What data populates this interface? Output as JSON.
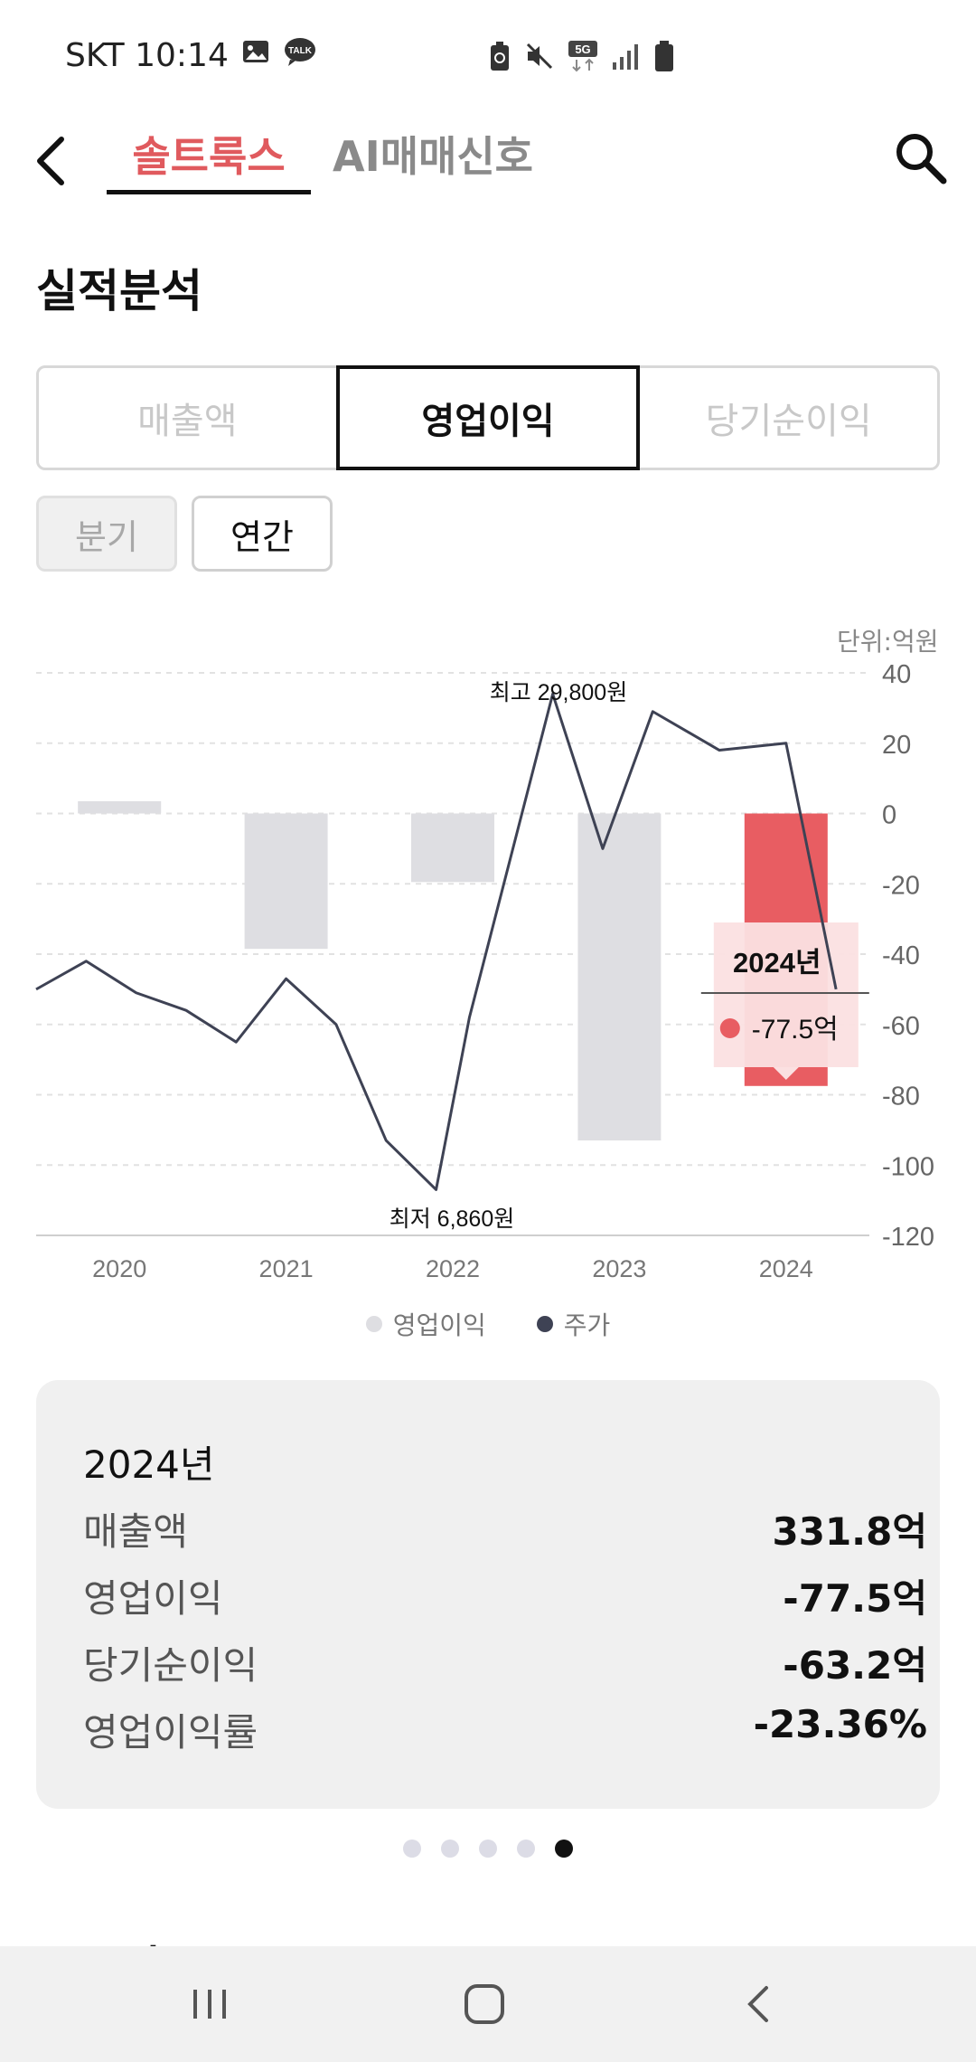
{
  "status_bar": {
    "carrier_time": "SKT 10:14",
    "network": "5G"
  },
  "header": {
    "tab_active": "솔트룩스",
    "tab_ai": "AI매매신호"
  },
  "section": {
    "title": "실적분석",
    "next_title": "주요지표"
  },
  "metric_tabs": [
    "매출액",
    "영업이익",
    "당기순이익"
  ],
  "period_tabs": [
    "분기",
    "연간"
  ],
  "chart": {
    "unit": "단위:억원",
    "high_label": "최고 29,800원",
    "low_label": "최저 6,860원",
    "tooltip": {
      "year": "2024년",
      "value": "-77.5억"
    },
    "legend": [
      "영업이익",
      "주가"
    ],
    "colors": {
      "bar": "#dedee2",
      "bar_selected": "#e85d62",
      "line": "#3e4254",
      "tooltip_bg": "#fbe0e1"
    }
  },
  "chart_data": {
    "type": "bar",
    "categories": [
      "2020",
      "2021",
      "2022",
      "2023",
      "2024"
    ],
    "series": [
      {
        "name": "영업이익",
        "values": [
          3.5,
          -38.5,
          -19.5,
          -93,
          -77.5
        ]
      }
    ],
    "ylim": [
      -120,
      40
    ],
    "yticks": [
      40,
      20,
      0,
      -20,
      -40,
      -60,
      -80,
      -100,
      -120
    ],
    "line_series": {
      "name": "주가",
      "x": [
        0,
        0.3,
        0.6,
        0.9,
        1.2,
        1.5,
        1.8,
        2.1,
        2.4,
        2.6,
        3.1,
        3.4,
        3.7,
        4.1,
        4.5,
        4.8
      ],
      "values": [
        -50,
        -42,
        -51,
        -56,
        -65,
        -47,
        -60,
        -93,
        -107,
        -58,
        34,
        -10,
        29,
        18,
        20,
        -50
      ]
    },
    "selected_index": 4,
    "grid": true
  },
  "summary": {
    "year": "2024년",
    "rows": [
      {
        "label": "매출액",
        "value": "331.8억"
      },
      {
        "label": "영업이익",
        "value": "-77.5억"
      },
      {
        "label": "당기순이익",
        "value": "-63.2억"
      },
      {
        "label": "영업이익률",
        "value": "-23.36%"
      }
    ]
  },
  "pager": {
    "count": 5,
    "active": 4
  }
}
